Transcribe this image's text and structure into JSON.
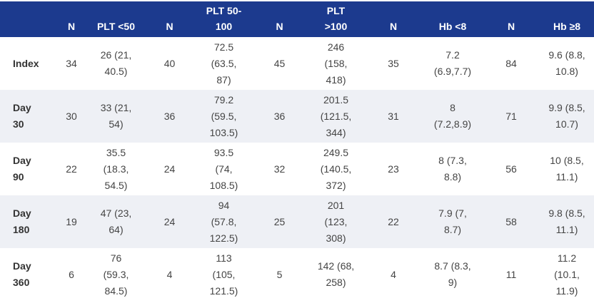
{
  "table": {
    "columns": [
      "N",
      "PLT <50",
      "N",
      "PLT 50-100",
      "N",
      "PLT >100",
      "N",
      "Hb <8",
      "N",
      "Hb ≥8"
    ],
    "rows": [
      [
        "Index",
        "34",
        "26 (21, 40.5)",
        "40",
        "72.5 (63.5, 87)",
        "45",
        "246 (158, 418)",
        "35",
        "7.2 (6.9,7.7)",
        "84",
        "9.6 (8.8, 10.8)"
      ],
      [
        "Day 30",
        "30",
        "33 (21, 54)",
        "36",
        "79.2 (59.5, 103.5)",
        "36",
        "201.5 (121.5, 344)",
        "31",
        "8 (7.2,8.9)",
        "71",
        "9.9 (8.5, 10.7)"
      ],
      [
        "Day 90",
        "22",
        "35.5 (18.3, 54.5)",
        "24",
        "93.5 (74, 108.5)",
        "32",
        "249.5 (140.5, 372)",
        "23",
        "8 (7.3, 8.8)",
        "56",
        "10 (8.5, 11.1)"
      ],
      [
        "Day 180",
        "19",
        "47 (23, 64)",
        "24",
        "94 (57.8, 122.5)",
        "25",
        "201 (123, 308)",
        "22",
        "7.9 (7, 8.7)",
        "58",
        "9.8 (8.5, 11.1)"
      ],
      [
        "Day 360",
        "6",
        "76 (59.3, 84.5)",
        "4",
        "113 (105, 121.5)",
        "5",
        "142 (68, 258)",
        "4",
        "8.7 (8.3, 9)",
        "11",
        "11.2 (10.1, 11.9)"
      ]
    ]
  }
}
